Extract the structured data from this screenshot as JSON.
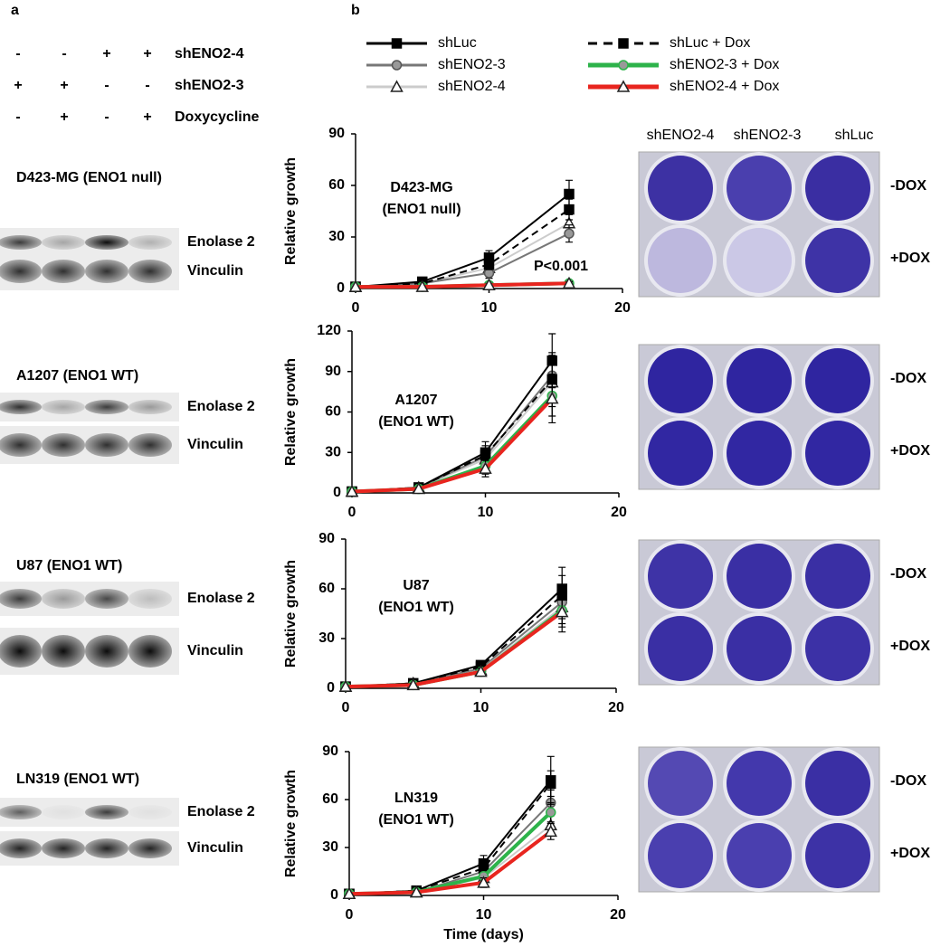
{
  "panel_a": {
    "label": "a",
    "header": [
      {
        "signs": [
          "-",
          "-",
          "+",
          "+"
        ],
        "label": "shENO2-4"
      },
      {
        "signs": [
          "+",
          "+",
          "-",
          "-"
        ],
        "label": "shENO2-3"
      },
      {
        "signs": [
          "-",
          "+",
          "-",
          "+"
        ],
        "label": "Doxycycline"
      }
    ],
    "blots": [
      {
        "title": "D423-MG (ENO1 null)",
        "title_color": "#e8251f",
        "bands": [
          "Enolase 2",
          "Vinculin"
        ]
      },
      {
        "title": "A1207 (ENO1 WT)",
        "title_color": "#000000",
        "bands": [
          "Enolase 2",
          "Vinculin"
        ]
      },
      {
        "title": "U87 (ENO1 WT)",
        "title_color": "#000000",
        "bands": [
          "Enolase 2",
          "Vinculin"
        ]
      },
      {
        "title": "LN319 (ENO1 WT)",
        "title_color": "#000000",
        "bands": [
          "Enolase 2",
          "Vinculin"
        ]
      }
    ]
  },
  "panel_b": {
    "label": "b",
    "legend": [
      {
        "name": "shLuc",
        "color": "#000000",
        "dash": false,
        "width": 2,
        "marker": "square"
      },
      {
        "name": "shENO2-3",
        "color": "#777777",
        "dash": false,
        "width": 2,
        "marker": "circle"
      },
      {
        "name": "shENO2-4",
        "color": "#cccccc",
        "dash": false,
        "width": 2,
        "marker": "triangle"
      },
      {
        "name": "shLuc + Dox",
        "color": "#000000",
        "dash": true,
        "width": 2,
        "marker": "square"
      },
      {
        "name": "shENO2-3 + Dox",
        "color": "#2db34a",
        "dash": false,
        "width": 4,
        "marker": "circle"
      },
      {
        "name": "shENO2-4 + Dox",
        "color": "#e8251f",
        "dash": false,
        "width": 4,
        "marker": "triangle"
      }
    ],
    "plate_columns": [
      "shENO2-4",
      "shENO2-3",
      "shLuc"
    ],
    "plates": [
      {
        "labels": [
          "-DOX",
          "+DOX"
        ]
      },
      {
        "labels": [
          "-DOX",
          "+DOX"
        ]
      },
      {
        "labels": [
          "-DOX",
          "+DOX"
        ]
      },
      {
        "labels": [
          "-DOX",
          "+DOX"
        ]
      }
    ]
  },
  "chart_data": [
    {
      "type": "line",
      "label": [
        "D423-MG",
        "(ENO1 null)"
      ],
      "label_color": "#e8251f",
      "annotation": "P<0.001",
      "ylabel": "Relative growth",
      "x": [
        0,
        5,
        10,
        16
      ],
      "xlim": [
        0,
        20
      ],
      "xticks": [
        0,
        10,
        20
      ],
      "ylim": [
        0,
        90
      ],
      "yticks": [
        0,
        30,
        60,
        90
      ],
      "series": [
        {
          "values": [
            1,
            4,
            18,
            55
          ],
          "errors": [
            0,
            1,
            4,
            8
          ]
        },
        {
          "values": [
            1,
            3,
            9,
            32
          ],
          "errors": [
            0,
            1,
            3,
            5
          ]
        },
        {
          "values": [
            1,
            3,
            12,
            38
          ],
          "errors": [
            0,
            1,
            3,
            5
          ]
        },
        {
          "values": [
            1,
            3,
            14,
            46
          ],
          "errors": [
            0,
            1,
            3,
            6
          ]
        },
        {
          "values": [
            1,
            1,
            2,
            3
          ],
          "errors": [
            0,
            0,
            1,
            1
          ]
        },
        {
          "values": [
            1,
            1,
            2,
            3
          ],
          "errors": [
            0,
            0,
            1,
            1
          ]
        }
      ]
    },
    {
      "type": "line",
      "label": [
        "A1207",
        "(ENO1 WT)"
      ],
      "label_color": "#000000",
      "ylabel": "Relative growth",
      "x": [
        0,
        5,
        10,
        15
      ],
      "xlim": [
        0,
        20
      ],
      "xticks": [
        0,
        10,
        20
      ],
      "ylim": [
        0,
        120
      ],
      "yticks": [
        0,
        30,
        60,
        90,
        120
      ],
      "series": [
        {
          "values": [
            1,
            4,
            30,
            98
          ],
          "errors": [
            0,
            1,
            8,
            20
          ]
        },
        {
          "values": [
            1,
            4,
            27,
            87
          ],
          "errors": [
            0,
            1,
            6,
            15
          ]
        },
        {
          "values": [
            1,
            4,
            25,
            82
          ],
          "errors": [
            0,
            1,
            6,
            15
          ]
        },
        {
          "values": [
            1,
            4,
            28,
            84
          ],
          "errors": [
            0,
            1,
            7,
            20
          ]
        },
        {
          "values": [
            1,
            3,
            20,
            72
          ],
          "errors": [
            0,
            1,
            6,
            15
          ]
        },
        {
          "values": [
            1,
            3,
            18,
            70
          ],
          "errors": [
            0,
            1,
            6,
            18
          ]
        }
      ]
    },
    {
      "type": "line",
      "label": [
        "U87",
        "(ENO1 WT)"
      ],
      "label_color": "#000000",
      "ylabel": "Relative growth",
      "x": [
        0,
        5,
        10,
        16
      ],
      "xlim": [
        0,
        20
      ],
      "xticks": [
        0,
        10,
        20
      ],
      "ylim": [
        0,
        90
      ],
      "yticks": [
        0,
        30,
        60,
        90
      ],
      "series": [
        {
          "values": [
            1,
            3,
            14,
            60
          ],
          "errors": [
            0,
            1,
            2,
            13
          ]
        },
        {
          "values": [
            1,
            3,
            12,
            52
          ],
          "errors": [
            0,
            1,
            2,
            10
          ]
        },
        {
          "values": [
            1,
            3,
            11,
            49
          ],
          "errors": [
            0,
            1,
            2,
            10
          ]
        },
        {
          "values": [
            1,
            3,
            13,
            56
          ],
          "errors": [
            0,
            1,
            2,
            12
          ]
        },
        {
          "values": [
            1,
            2,
            10,
            47
          ],
          "errors": [
            0,
            1,
            2,
            10
          ]
        },
        {
          "values": [
            1,
            2,
            10,
            46
          ],
          "errors": [
            0,
            1,
            2,
            12
          ]
        }
      ]
    },
    {
      "type": "line",
      "label": [
        "LN319",
        "(ENO1 WT)"
      ],
      "label_color": "#000000",
      "ylabel": "Relative growth",
      "xlabel": "Time (days)",
      "x": [
        0,
        5,
        10,
        15
      ],
      "xlim": [
        0,
        20
      ],
      "xticks": [
        0,
        10,
        20
      ],
      "ylim": [
        0,
        90
      ],
      "yticks": [
        0,
        30,
        60,
        90
      ],
      "series": [
        {
          "values": [
            1,
            3,
            20,
            72
          ],
          "errors": [
            0,
            1,
            5,
            15
          ]
        },
        {
          "values": [
            1,
            2,
            15,
            58
          ],
          "errors": [
            0,
            1,
            4,
            8
          ]
        },
        {
          "values": [
            1,
            2,
            11,
            44
          ],
          "errors": [
            0,
            1,
            3,
            6
          ]
        },
        {
          "values": [
            1,
            3,
            17,
            70
          ],
          "errors": [
            0,
            1,
            4,
            8
          ]
        },
        {
          "values": [
            1,
            2,
            12,
            52
          ],
          "errors": [
            0,
            1,
            3,
            6
          ]
        },
        {
          "values": [
            1,
            2,
            8,
            40
          ],
          "errors": [
            0,
            1,
            3,
            5
          ]
        }
      ]
    }
  ]
}
